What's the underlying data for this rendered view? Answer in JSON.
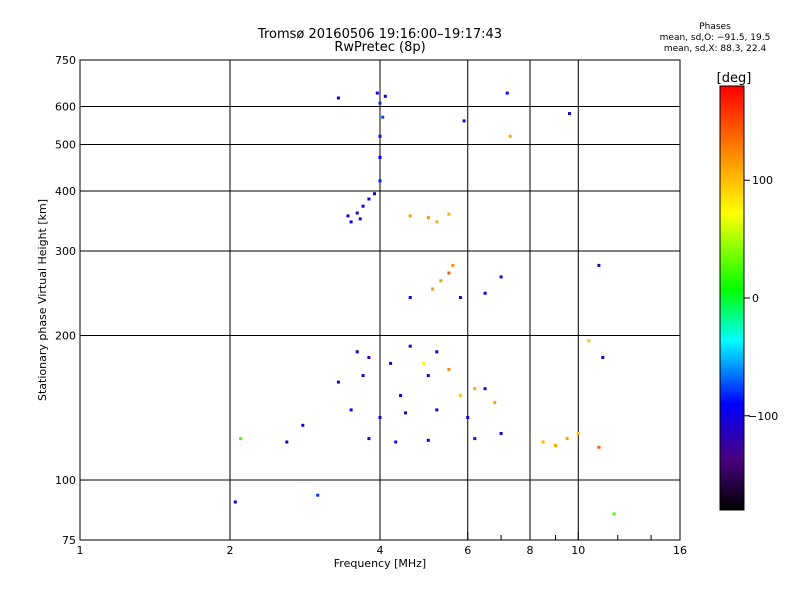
{
  "header": {
    "title": "Tromsø 20160506 19:16:00–19:17:43",
    "subtitle": "RwPretec (8p)"
  },
  "phases": {
    "title": "Phases",
    "o_line": "mean, sd,O: −91.5, 19.5",
    "x_line": "mean, sd,X:  88.3, 22.4"
  },
  "chart_data": {
    "type": "scatter",
    "title": "Tromsø 20160506 19:16:00–19:17:43",
    "subtitle": "RwPretec (8p)",
    "xlabel": "Frequency [MHz]",
    "ylabel": "Stationary phase Virtual Height [km]",
    "x_scale": "log",
    "y_scale": "log",
    "xlim": [
      1,
      16
    ],
    "ylim": [
      75,
      750
    ],
    "x_ticks": [
      1,
      2,
      4,
      6,
      8,
      10,
      16
    ],
    "x_minor_ticks": [
      7,
      9,
      12,
      14
    ],
    "y_ticks": [
      75,
      100,
      200,
      300,
      400,
      500,
      600,
      750
    ],
    "grid": true,
    "colorbar": {
      "label": "[deg]",
      "range": [
        -180,
        180
      ],
      "ticks": [
        100,
        0,
        -100
      ]
    },
    "series": [
      {
        "name": "phase",
        "points": [
          [
            3.5,
            345,
            -100
          ],
          [
            3.6,
            360,
            -110
          ],
          [
            3.7,
            372,
            -100
          ],
          [
            3.8,
            385,
            -95
          ],
          [
            3.9,
            395,
            -100
          ],
          [
            4.0,
            420,
            -85
          ],
          [
            4.0,
            470,
            -90
          ],
          [
            4.0,
            520,
            -85
          ],
          [
            4.05,
            570,
            -75
          ],
          [
            4.0,
            610,
            -80
          ],
          [
            3.95,
            640,
            -100
          ],
          [
            4.1,
            630,
            -110
          ],
          [
            3.3,
            625,
            -100
          ],
          [
            3.45,
            355,
            -115
          ],
          [
            3.65,
            350,
            -105
          ],
          [
            4.6,
            355,
            115
          ],
          [
            5.0,
            352,
            120
          ],
          [
            5.5,
            358,
            110
          ],
          [
            5.2,
            345,
            105
          ],
          [
            5.1,
            250,
            115
          ],
          [
            5.3,
            260,
            115
          ],
          [
            5.5,
            270,
            140
          ],
          [
            5.6,
            280,
            120
          ],
          [
            4.6,
            240,
            -90
          ],
          [
            5.8,
            240,
            -95
          ],
          [
            6.5,
            245,
            -90
          ],
          [
            7.0,
            265,
            -100
          ],
          [
            3.6,
            185,
            -110
          ],
          [
            3.8,
            180,
            -120
          ],
          [
            4.2,
            175,
            -110
          ],
          [
            4.6,
            190,
            -110
          ],
          [
            5.2,
            185,
            -100
          ],
          [
            3.3,
            160,
            -120
          ],
          [
            3.7,
            165,
            -110
          ],
          [
            4.4,
            150,
            -105
          ],
          [
            5.0,
            165,
            -110
          ],
          [
            6.5,
            155,
            -105
          ],
          [
            3.5,
            140,
            -110
          ],
          [
            4.0,
            135,
            -115
          ],
          [
            4.5,
            138,
            -110
          ],
          [
            5.2,
            140,
            -105
          ],
          [
            6.0,
            135,
            -110
          ],
          [
            3.8,
            122,
            -110
          ],
          [
            4.3,
            120,
            -105
          ],
          [
            5.0,
            121,
            -110
          ],
          [
            6.2,
            122,
            -110
          ],
          [
            7.0,
            125,
            -105
          ],
          [
            5.8,
            150,
            95
          ],
          [
            6.2,
            155,
            110
          ],
          [
            6.8,
            145,
            115
          ],
          [
            5.5,
            170,
            125
          ],
          [
            4.9,
            175,
            80
          ],
          [
            9.0,
            118,
            110
          ],
          [
            9.5,
            122,
            115
          ],
          [
            10.0,
            125,
            100
          ],
          [
            8.5,
            120,
            105
          ],
          [
            2.8,
            130,
            -100
          ],
          [
            2.6,
            120,
            -110
          ],
          [
            2.1,
            122,
            20
          ],
          [
            2.05,
            90,
            -100
          ],
          [
            3.0,
            93,
            -80
          ],
          [
            7.2,
            640,
            -90
          ],
          [
            9.6,
            580,
            -105
          ],
          [
            5.9,
            560,
            -100
          ],
          [
            7.3,
            520,
            110
          ],
          [
            10.5,
            195,
            100
          ],
          [
            11.0,
            280,
            -110
          ],
          [
            11.2,
            180,
            -100
          ],
          [
            11.8,
            85,
            25
          ],
          [
            11.0,
            117,
            140
          ]
        ]
      }
    ]
  }
}
